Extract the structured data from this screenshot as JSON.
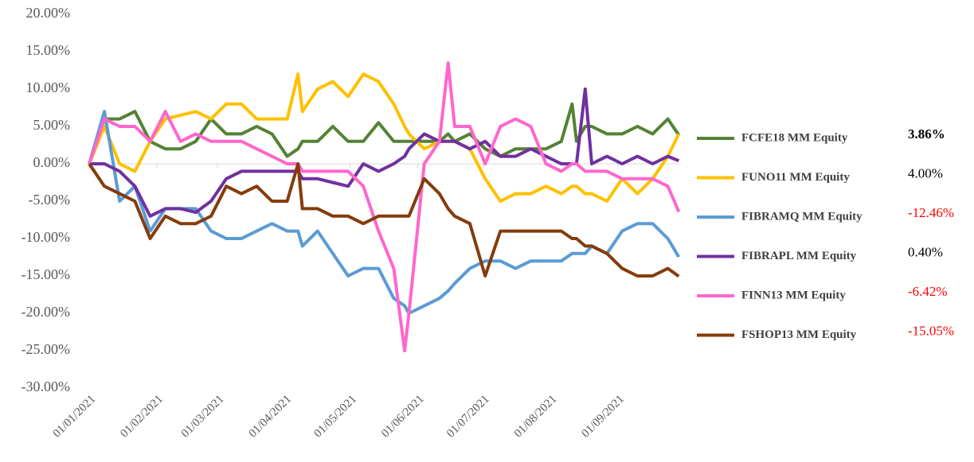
{
  "chart_data": {
    "type": "line",
    "x": [
      "2021-01-01",
      "2021-01-08",
      "2021-01-15",
      "2021-01-22",
      "2021-01-29",
      "2021-02-05",
      "2021-02-12",
      "2021-02-19",
      "2021-02-26",
      "2021-03-05",
      "2021-03-12",
      "2021-03-19",
      "2021-03-26",
      "2021-04-02",
      "2021-04-07",
      "2021-04-09",
      "2021-04-16",
      "2021-04-23",
      "2021-04-30",
      "2021-05-07",
      "2021-05-14",
      "2021-05-21",
      "2021-05-26",
      "2021-05-28",
      "2021-06-04",
      "2021-06-11",
      "2021-06-15",
      "2021-06-18",
      "2021-06-25",
      "2021-07-02",
      "2021-07-09",
      "2021-07-16",
      "2021-07-23",
      "2021-07-30",
      "2021-08-06",
      "2021-08-11",
      "2021-08-13",
      "2021-08-17",
      "2021-08-20",
      "2021-08-27",
      "2021-09-03",
      "2021-09-10",
      "2021-09-17",
      "2021-09-24",
      "2021-09-29"
    ],
    "series": [
      {
        "name": "FCFE18 MM Equity",
        "color": "#548235",
        "end_label": "3.86%",
        "end_label_color": "#000000",
        "end_label_bold": true,
        "values": [
          0,
          6,
          6,
          7,
          3,
          2,
          2,
          3,
          6,
          4,
          4,
          5,
          4,
          1,
          2,
          3,
          3,
          5,
          3,
          3,
          5.5,
          3,
          3,
          3,
          3,
          3,
          4,
          3,
          4,
          2,
          1,
          2,
          2,
          2,
          3,
          8,
          3,
          5,
          5,
          4,
          4,
          5,
          4,
          6,
          3.86
        ]
      },
      {
        "name": "FUNO11 MM Equity",
        "color": "#ffc000",
        "end_label": "4.00%",
        "end_label_color": "#000000",
        "end_label_bold": false,
        "values": [
          0,
          5,
          0,
          -1,
          3,
          6,
          6.5,
          7,
          6,
          8,
          8,
          6,
          6,
          6,
          12,
          7,
          10,
          11,
          9,
          12,
          11,
          8,
          5,
          4,
          2,
          3,
          3,
          3,
          2,
          -2,
          -5,
          -4,
          -4,
          -3,
          -4,
          -3,
          -3,
          -4,
          -4,
          -5,
          -2,
          -4,
          -2,
          1,
          4
        ]
      },
      {
        "name": "FIBRAMQ MM Equity",
        "color": "#5b9bd5",
        "end_label": "-12.46%",
        "end_label_color": "#ff0000",
        "end_label_bold": false,
        "values": [
          0,
          7,
          -5,
          -3,
          -9,
          -6,
          -6,
          -6,
          -9,
          -10,
          -10,
          -9,
          -8,
          -9,
          -9,
          -11,
          -9,
          -12,
          -15,
          -14,
          -14,
          -18,
          -19,
          -20,
          -19,
          -18,
          -17,
          -16,
          -14,
          -13,
          -13,
          -14,
          -13,
          -13,
          -13,
          -12,
          -12,
          -12,
          -11,
          -12,
          -9,
          -8,
          -8,
          -10,
          -12.46
        ]
      },
      {
        "name": "FIBRAPL MM Equity",
        "color": "#7030a0",
        "end_label": "0.40%",
        "end_label_color": "#000000",
        "end_label_bold": false,
        "values": [
          0,
          0,
          -1,
          -3,
          -7,
          -6,
          -6,
          -6.5,
          -5,
          -2,
          -1,
          -1,
          -1,
          -1,
          -1,
          -2,
          -2,
          -2.5,
          -3,
          0,
          -1,
          0,
          1,
          2,
          4,
          3,
          3,
          3,
          2,
          3,
          1,
          1,
          2,
          1,
          0,
          0,
          0,
          10,
          0,
          1,
          0,
          1,
          0,
          1,
          0.4
        ]
      },
      {
        "name": "FINN13 MM Equity",
        "color": "#ff66cc",
        "end_label": "-6.42%",
        "end_label_color": "#ff0000",
        "end_label_bold": false,
        "values": [
          0,
          6,
          5,
          5,
          3,
          7,
          3,
          4,
          3,
          3,
          3,
          2,
          1,
          0,
          0,
          -1,
          -1,
          -1,
          -1,
          -3,
          -9,
          -14,
          -25,
          -20,
          0,
          3,
          13.5,
          5,
          5,
          0,
          5,
          6,
          5,
          0,
          -1,
          0,
          0,
          -1,
          -1,
          -1,
          -2,
          -2,
          -2,
          -3,
          -6.42
        ]
      },
      {
        "name": "FSHOP13 MM Equity",
        "color": "#843c0c",
        "end_label": "-15.05%",
        "end_label_color": "#ff0000",
        "end_label_bold": false,
        "values": [
          0,
          -3,
          -4,
          -5,
          -10,
          -7,
          -8,
          -8,
          -7,
          -3,
          -4,
          -3,
          -5,
          -5,
          0,
          -6,
          -6,
          -7,
          -7,
          -8,
          -7,
          -7,
          -7,
          -7,
          -2,
          -4,
          -6,
          -7,
          -8,
          -15,
          -9,
          -9,
          -9,
          -9,
          -9,
          -10,
          -10,
          -11,
          -11,
          -12,
          -14,
          -15,
          -15,
          -14,
          -15.05
        ]
      }
    ],
    "xlim": [
      "2021-01-01",
      "2021-09-30"
    ],
    "xticks": [
      {
        "value": "2021-01-01",
        "label": "01/01/2021"
      },
      {
        "value": "2021-02-01",
        "label": "01/02/2021"
      },
      {
        "value": "2021-03-01",
        "label": "01/03/2021"
      },
      {
        "value": "2021-04-01",
        "label": "01/04/2021"
      },
      {
        "value": "2021-05-01",
        "label": "01/05/2021"
      },
      {
        "value": "2021-06-01",
        "label": "01/06/2021"
      },
      {
        "value": "2021-07-01",
        "label": "01/07/2021"
      },
      {
        "value": "2021-08-01",
        "label": "01/08/2021"
      },
      {
        "value": "2021-09-01",
        "label": "01/09/2021"
      }
    ],
    "ylim": [
      -30,
      20
    ],
    "yticks": [
      {
        "value": -30,
        "label": "-30.00%"
      },
      {
        "value": -25,
        "label": "-25.00%"
      },
      {
        "value": -20,
        "label": "-20.00%"
      },
      {
        "value": -15,
        "label": "-15.00%"
      },
      {
        "value": -10,
        "label": "-10.00%"
      },
      {
        "value": -5,
        "label": "-5.00%"
      },
      {
        "value": 0,
        "label": "0.00%"
      },
      {
        "value": 5,
        "label": "5.00%"
      },
      {
        "value": 10,
        "label": "10.00%"
      },
      {
        "value": 15,
        "label": "15.00%"
      },
      {
        "value": 20,
        "label": "20.00%"
      }
    ],
    "grid": false,
    "legend": "right"
  }
}
